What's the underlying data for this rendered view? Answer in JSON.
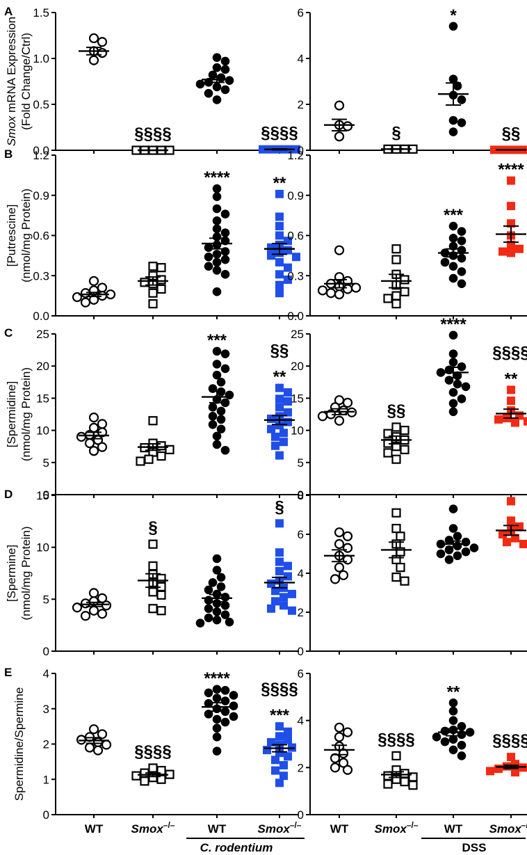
{
  "colors": {
    "wt": "#000000",
    "smox_cr": "#1f4fe8",
    "smox_dss": "#f22a14",
    "axis": "#000000"
  },
  "group_labels": [
    "WT",
    "Smox–/–",
    "WT",
    "Smox–/–"
  ],
  "treatments": {
    "left": "C. rodentium",
    "right": "DSS"
  },
  "chart_data": [
    {
      "panel": "A",
      "side": "left",
      "type": "scatter",
      "ylabel": [
        "Smox mRNA Expression",
        "(Fold Change/Ctrl)"
      ],
      "ylim": [
        0,
        1.5
      ],
      "yticks": [
        "0.0",
        "0.5",
        "1.0",
        "1.5"
      ],
      "groups": [
        {
          "label": "WT",
          "marker": "circle-open",
          "mean": 1.08,
          "sem": 0.04,
          "values": [
            1.22,
            1.18,
            1.08,
            1.06,
            0.98
          ],
          "sig": []
        },
        {
          "label": "Smox–/–",
          "marker": "square-open",
          "mean": 0.0,
          "sem": 0.0,
          "values": [
            0,
            0,
            0,
            0,
            0
          ],
          "sig": [
            "§§§§"
          ]
        },
        {
          "label": "WT",
          "marker": "circle-filled",
          "mean": 0.77,
          "sem": 0.03,
          "values": [
            1.01,
            0.97,
            0.9,
            0.88,
            0.82,
            0.79,
            0.76,
            0.74,
            0.72,
            0.69,
            0.66,
            0.62,
            0.55
          ],
          "sig": []
        },
        {
          "label": "Smox–/–",
          "marker": "square-blue",
          "mean": 0.01,
          "sem": 0.005,
          "values": [
            0.01,
            0.01,
            0.01,
            0.01,
            0.01
          ],
          "sig": [
            "§§§§"
          ]
        }
      ]
    },
    {
      "panel": "",
      "side": "right",
      "type": "scatter",
      "ylim": [
        0,
        6
      ],
      "yticks": [
        "0",
        "2",
        "4",
        "6"
      ],
      "groups": [
        {
          "label": "WT",
          "marker": "circle-open",
          "mean": 1.1,
          "sem": 0.25,
          "values": [
            1.95,
            1.1,
            1.05,
            0.6
          ],
          "sig": []
        },
        {
          "label": "Smox–/–",
          "marker": "square-open",
          "mean": 0.05,
          "sem": 0.01,
          "values": [
            0.05,
            0.05,
            0.05,
            0.05
          ],
          "sig": [
            "§"
          ]
        },
        {
          "label": "WT",
          "marker": "circle-filled",
          "mean": 2.45,
          "sem": 0.48,
          "values": [
            5.4,
            3.1,
            2.8,
            2.4,
            2.2,
            1.3,
            1.2,
            0.8
          ],
          "sig": [
            "*"
          ]
        },
        {
          "label": "Smox–/–",
          "marker": "square-red",
          "mean": 0.02,
          "sem": 0.005,
          "values": [
            0.02,
            0.02,
            0.02,
            0.02,
            0.02
          ],
          "sig": [
            "§§"
          ]
        }
      ]
    },
    {
      "panel": "B",
      "side": "left",
      "type": "scatter",
      "ylabel": [
        "[Putrescine]",
        "(nmol/mg Protein)"
      ],
      "ylim": [
        0,
        1.2
      ],
      "yticks": [
        "0.0",
        "0.3",
        "0.6",
        "0.9",
        "1.2"
      ],
      "groups": [
        {
          "label": "WT",
          "marker": "circle-open",
          "mean": 0.16,
          "sem": 0.015,
          "values": [
            0.26,
            0.21,
            0.19,
            0.17,
            0.16,
            0.15,
            0.14,
            0.12,
            0.1
          ],
          "sig": []
        },
        {
          "label": "Smox–/–",
          "marker": "square-open",
          "mean": 0.26,
          "sem": 0.03,
          "values": [
            0.37,
            0.36,
            0.3,
            0.27,
            0.25,
            0.24,
            0.2,
            0.17,
            0.09
          ],
          "sig": []
        },
        {
          "label": "WT",
          "marker": "circle-filled",
          "mean": 0.54,
          "sem": 0.04,
          "values": [
            0.95,
            0.89,
            0.8,
            0.76,
            0.71,
            0.65,
            0.62,
            0.59,
            0.56,
            0.53,
            0.51,
            0.48,
            0.46,
            0.44,
            0.42,
            0.4,
            0.37,
            0.34,
            0.31,
            0.18
          ],
          "sig": [
            "****"
          ]
        },
        {
          "label": "Smox–/–",
          "marker": "square-blue",
          "mean": 0.5,
          "sem": 0.04,
          "values": [
            0.91,
            0.74,
            0.67,
            0.6,
            0.56,
            0.53,
            0.51,
            0.49,
            0.47,
            0.45,
            0.44,
            0.4,
            0.36,
            0.31,
            0.27,
            0.23,
            0.17
          ],
          "sig": [
            "**"
          ]
        }
      ]
    },
    {
      "panel": "",
      "side": "right",
      "type": "scatter",
      "ylim": [
        0,
        1.2
      ],
      "yticks": [
        "0.0",
        "0.3",
        "0.6",
        "0.9",
        "1.2"
      ],
      "groups": [
        {
          "label": "WT",
          "marker": "circle-open",
          "mean": 0.24,
          "sem": 0.03,
          "values": [
            0.49,
            0.29,
            0.26,
            0.24,
            0.22,
            0.21,
            0.2,
            0.19,
            0.17,
            0.16
          ],
          "sig": []
        },
        {
          "label": "Smox–/–",
          "marker": "square-open",
          "mean": 0.26,
          "sem": 0.05,
          "values": [
            0.5,
            0.42,
            0.31,
            0.27,
            0.23,
            0.18,
            0.15,
            0.13,
            0.09
          ],
          "sig": []
        },
        {
          "label": "WT",
          "marker": "circle-filled",
          "mean": 0.47,
          "sem": 0.03,
          "values": [
            0.67,
            0.63,
            0.58,
            0.56,
            0.52,
            0.49,
            0.47,
            0.45,
            0.43,
            0.4,
            0.37,
            0.33,
            0.28,
            0.24
          ],
          "sig": [
            "***"
          ]
        },
        {
          "label": "Smox–/–",
          "marker": "square-red",
          "mean": 0.61,
          "sem": 0.06,
          "values": [
            1.01,
            0.82,
            0.69,
            0.6,
            0.53,
            0.5,
            0.48,
            0.47
          ],
          "sig": [
            "****"
          ]
        }
      ]
    },
    {
      "panel": "C",
      "side": "left",
      "type": "scatter",
      "ylabel": [
        "[Spermidine]",
        "(nmol/mg Protein)"
      ],
      "ylim": [
        0,
        25
      ],
      "yticks": [
        "0",
        "5",
        "10",
        "15",
        "20",
        "25"
      ],
      "groups": [
        {
          "label": "WT",
          "marker": "circle-open",
          "mean": 9.2,
          "sem": 0.5,
          "values": [
            12,
            11,
            10.4,
            9.7,
            9.3,
            9,
            8.5,
            8,
            7.4,
            6.8
          ],
          "sig": []
        },
        {
          "label": "Smox–/–",
          "marker": "square-open",
          "mean": 7.4,
          "sem": 0.5,
          "values": [
            11.5,
            8,
            7.6,
            7.3,
            7,
            6.6,
            6,
            5.5,
            5.2
          ],
          "sig": []
        },
        {
          "label": "WT",
          "marker": "circle-filled",
          "mean": 15.2,
          "sem": 0.9,
          "values": [
            22.3,
            21.9,
            20.3,
            19.6,
            18.6,
            17.5,
            16.5,
            16,
            15.5,
            14.8,
            14.3,
            13.6,
            13,
            12.2,
            11.7,
            10.9,
            10.2,
            9.1,
            7.8,
            6.9
          ],
          "sig": [
            "***"
          ]
        },
        {
          "label": "Smox–/–",
          "marker": "square-blue",
          "mean": 11.6,
          "sem": 0.7,
          "values": [
            16.6,
            15.9,
            14.9,
            14.5,
            13.6,
            12.8,
            12.2,
            11.8,
            11.3,
            10.8,
            10.2,
            9.6,
            9,
            8.2,
            7.6,
            6.1
          ],
          "sig": [
            "§§",
            "**"
          ]
        }
      ]
    },
    {
      "panel": "",
      "side": "right",
      "type": "scatter",
      "ylim": [
        0,
        25
      ],
      "yticks": [
        "0",
        "5",
        "10",
        "15",
        "20",
        "25"
      ],
      "groups": [
        {
          "label": "WT",
          "marker": "circle-open",
          "mean": 12.9,
          "sem": 0.45,
          "values": [
            14.7,
            14.3,
            13.6,
            13.1,
            12.8,
            12.5,
            12.2,
            11.5
          ],
          "sig": []
        },
        {
          "label": "Smox–/–",
          "marker": "square-open",
          "mean": 8.5,
          "sem": 0.6,
          "values": [
            10.5,
            10,
            9.5,
            9,
            8.5,
            8,
            7.5,
            7,
            6.5,
            5.5
          ],
          "sig": [
            "§§"
          ]
        },
        {
          "label": "WT",
          "marker": "circle-filled",
          "mean": 19,
          "sem": 0.8,
          "values": [
            24.8,
            21.9,
            20.6,
            19.9,
            19.4,
            19,
            18.5,
            17.8,
            17.2,
            16.8,
            15.9,
            14.9,
            14.2,
            12.9
          ],
          "sig": [
            "****"
          ]
        },
        {
          "label": "Smox–/–",
          "marker": "square-red",
          "mean": 12.6,
          "sem": 0.7,
          "values": [
            16.3,
            14.6,
            13.1,
            12.3,
            11.9,
            11.7,
            11.4,
            11.2
          ],
          "sig": [
            "§§§§",
            "**"
          ]
        }
      ]
    },
    {
      "panel": "D",
      "side": "left",
      "type": "scatter",
      "ylabel": [
        "[Spermine]",
        "(nmol/mg Protein)"
      ],
      "ylim": [
        0,
        15
      ],
      "yticks": [
        "0",
        "5",
        "10",
        "15"
      ],
      "groups": [
        {
          "label": "WT",
          "marker": "circle-open",
          "mean": 4.5,
          "sem": 0.2,
          "values": [
            5.6,
            5.1,
            4.8,
            4.6,
            4.4,
            4.2,
            3.9,
            3.6,
            3.4
          ],
          "sig": []
        },
        {
          "label": "Smox–/–",
          "marker": "square-open",
          "mean": 6.8,
          "sem": 0.65,
          "values": [
            10.3,
            8.2,
            7.4,
            7,
            6.6,
            6.2,
            5.7,
            5.4,
            4.1,
            3.9
          ],
          "sig": [
            "§"
          ]
        },
        {
          "label": "WT",
          "marker": "circle-filled",
          "mean": 5.1,
          "sem": 0.35,
          "values": [
            8.9,
            7.8,
            7.1,
            6.6,
            6.2,
            5.9,
            5.5,
            5.2,
            4.9,
            4.6,
            4.4,
            4.1,
            3.8,
            3.5,
            3.2,
            3,
            2.8,
            2.7
          ],
          "sig": []
        },
        {
          "label": "Smox–/–",
          "marker": "square-blue",
          "mean": 6.6,
          "sem": 0.5,
          "values": [
            12.3,
            9.5,
            8.6,
            8.2,
            7.7,
            7.2,
            6.8,
            6.5,
            6.1,
            5.8,
            5.5,
            5.2,
            4.8,
            4.4,
            4.1,
            3.9
          ],
          "sig": [
            "§"
          ]
        }
      ]
    },
    {
      "panel": "",
      "side": "right",
      "type": "scatter",
      "ylim": [
        0,
        8
      ],
      "yticks": [
        "0",
        "2",
        "4",
        "6",
        "8"
      ],
      "groups": [
        {
          "label": "WT",
          "marker": "circle-open",
          "mean": 4.9,
          "sem": 0.3,
          "values": [
            6.1,
            5.9,
            5.5,
            5.3,
            4.9,
            4.7,
            4.3,
            3.9,
            3.7
          ],
          "sig": []
        },
        {
          "label": "Smox–/–",
          "marker": "square-open",
          "mean": 5.2,
          "sem": 0.4,
          "values": [
            7.1,
            6.3,
            5.9,
            5.5,
            5.1,
            4.7,
            4.3,
            3.8,
            3.6
          ],
          "sig": []
        },
        {
          "label": "WT",
          "marker": "circle-filled",
          "mean": 5.5,
          "sem": 0.15,
          "values": [
            7.3,
            6.3,
            5.9,
            5.7,
            5.6,
            5.5,
            5.4,
            5.3,
            5.2,
            5.1,
            5,
            4.9,
            4.7
          ],
          "sig": []
        },
        {
          "label": "Smox–/–",
          "marker": "square-red",
          "mean": 6.2,
          "sem": 0.25,
          "values": [
            7.7,
            6.7,
            6.4,
            6.2,
            6,
            5.8,
            5.6,
            5.5
          ],
          "sig": []
        }
      ]
    },
    {
      "panel": "E",
      "side": "left",
      "type": "scatter",
      "ylabel": [
        "Spermidine/Spermine"
      ],
      "ylim": [
        0,
        4
      ],
      "yticks": [
        "0",
        "1",
        "2",
        "3",
        "4"
      ],
      "groups": [
        {
          "label": "WT",
          "marker": "circle-open",
          "mean": 2.1,
          "sem": 0.08,
          "values": [
            2.42,
            2.28,
            2.2,
            2.12,
            2.05,
            1.98,
            1.9,
            1.82
          ],
          "sig": []
        },
        {
          "label": "Smox–/–",
          "marker": "square-open",
          "mean": 1.13,
          "sem": 0.05,
          "values": [
            1.32,
            1.25,
            1.18,
            1.14,
            1.1,
            1.05,
            1.0,
            0.95
          ],
          "sig": [
            "§§§§"
          ]
        },
        {
          "label": "WT",
          "marker": "circle-filled",
          "mean": 3.05,
          "sem": 0.12,
          "values": [
            3.55,
            3.52,
            3.45,
            3.38,
            3.3,
            3.22,
            3.15,
            3.08,
            3.0,
            2.92,
            2.85,
            2.78,
            2.7,
            2.62,
            2.45,
            2.2,
            1.8
          ],
          "sig": [
            "****"
          ]
        },
        {
          "label": "Smox–/–",
          "marker": "square-blue",
          "mean": 1.88,
          "sem": 0.1,
          "values": [
            2.5,
            2.35,
            2.22,
            2.12,
            2.05,
            1.98,
            1.9,
            1.83,
            1.75,
            1.65,
            1.55,
            1.4,
            1.25,
            1.1,
            0.9
          ],
          "sig": [
            "§§§§",
            "***"
          ]
        }
      ]
    },
    {
      "panel": "",
      "side": "right",
      "type": "scatter",
      "ylim": [
        0,
        6
      ],
      "yticks": [
        "0",
        "2",
        "4",
        "6"
      ],
      "groups": [
        {
          "label": "WT",
          "marker": "circle-open",
          "mean": 2.75,
          "sem": 0.2,
          "values": [
            3.7,
            3.5,
            3.3,
            2.9,
            2.6,
            2.4,
            2.2,
            2.0,
            1.9
          ],
          "sig": []
        },
        {
          "label": "Smox–/–",
          "marker": "square-open",
          "mean": 1.7,
          "sem": 0.12,
          "values": [
            2.5,
            1.9,
            1.75,
            1.65,
            1.6,
            1.5,
            1.4,
            1.3,
            1.25
          ],
          "sig": [
            "§§§§"
          ]
        },
        {
          "label": "WT",
          "marker": "circle-filled",
          "mean": 3.5,
          "sem": 0.15,
          "values": [
            4.75,
            4.4,
            4.0,
            3.75,
            3.6,
            3.55,
            3.5,
            3.4,
            3.3,
            3.2,
            3.1,
            2.95,
            2.75,
            2.5
          ],
          "sig": [
            "**"
          ]
        },
        {
          "label": "Smox–/–",
          "marker": "square-red",
          "mean": 2.03,
          "sem": 0.07,
          "values": [
            2.45,
            2.15,
            2.05,
            2.0,
            1.95,
            1.9,
            1.85,
            1.8
          ],
          "sig": [
            "§§§§"
          ]
        }
      ]
    }
  ]
}
